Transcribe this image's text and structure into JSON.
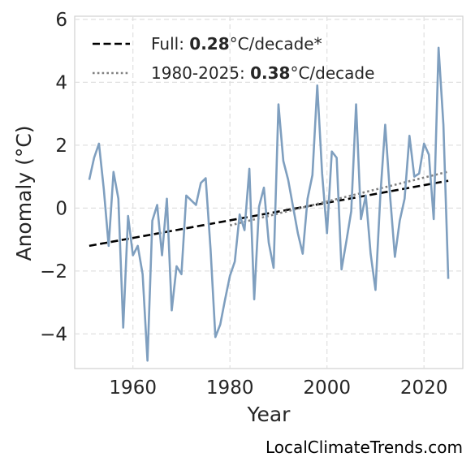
{
  "chart_data": {
    "type": "line",
    "xlabel": "Year",
    "ylabel": "Anomaly (°C)",
    "xlim": [
      1948,
      2028
    ],
    "ylim": [
      -5.1,
      6.1
    ],
    "x_ticks": [
      1960,
      1980,
      2000,
      2020
    ],
    "y_ticks": [
      6,
      4,
      2,
      0,
      -2,
      -4
    ],
    "y_tick_labels": [
      "6",
      "4",
      "2",
      "0",
      "−2",
      "−4"
    ],
    "grid": true,
    "legend_position": "top-left",
    "series": [
      {
        "role": "anomaly",
        "color": "#7f9fbf",
        "x": [
          1951,
          1952,
          1953,
          1954,
          1955,
          1956,
          1957,
          1958,
          1959,
          1960,
          1961,
          1962,
          1963,
          1964,
          1965,
          1966,
          1967,
          1968,
          1969,
          1970,
          1971,
          1972,
          1973,
          1974,
          1975,
          1976,
          1977,
          1978,
          1979,
          1980,
          1981,
          1982,
          1983,
          1984,
          1985,
          1986,
          1987,
          1988,
          1989,
          1990,
          1991,
          1992,
          1993,
          1994,
          1995,
          1996,
          1997,
          1998,
          1999,
          2000,
          2001,
          2002,
          2003,
          2004,
          2005,
          2006,
          2007,
          2008,
          2009,
          2010,
          2011,
          2012,
          2013,
          2014,
          2015,
          2016,
          2017,
          2018,
          2019,
          2020,
          2021,
          2022,
          2023,
          2024,
          2025
        ],
        "values": [
          0.9,
          1.6,
          2.05,
          0.6,
          -1.2,
          1.15,
          0.3,
          -3.8,
          -0.25,
          -1.5,
          -1.2,
          -2.1,
          -4.85,
          -0.4,
          0.1,
          -1.5,
          0.3,
          -3.25,
          -1.85,
          -2.1,
          0.4,
          0.25,
          0.1,
          0.8,
          0.95,
          -1.3,
          -4.1,
          -3.7,
          -2.9,
          -2.15,
          -1.7,
          -0.2,
          -0.7,
          1.25,
          -2.9,
          0.05,
          0.65,
          -1.1,
          -1.9,
          3.3,
          1.5,
          0.9,
          0.05,
          -0.8,
          -1.45,
          0.3,
          1.05,
          3.9,
          1.1,
          -0.8,
          1.8,
          1.6,
          -1.95,
          -1.05,
          -0.1,
          3.3,
          -0.35,
          0.4,
          -1.45,
          -2.6,
          0.4,
          2.65,
          0.4,
          -1.55,
          -0.4,
          0.3,
          2.3,
          1.0,
          1.1,
          2.05,
          1.7,
          -0.35,
          5.1,
          2.65,
          -2.25
        ]
      },
      {
        "role": "trend-full",
        "color": "#000000",
        "style": "dashed",
        "x": [
          1951,
          2025
        ],
        "values": [
          -1.2,
          0.87
        ]
      },
      {
        "role": "trend-recent",
        "color": "#808080",
        "style": "dotted",
        "x": [
          1980,
          2025
        ],
        "values": [
          -0.55,
          1.16
        ]
      }
    ],
    "legend": [
      {
        "line_style": "dashed",
        "color": "#000000",
        "prefix": "Full: ",
        "bold": "0.28",
        "suffix": "°C/decade*"
      },
      {
        "line_style": "dotted",
        "color": "#808080",
        "prefix": "1980-2025: ",
        "bold": "0.38",
        "suffix": "°C/decade"
      }
    ]
  },
  "credit": "LocalClimateTrends.com"
}
